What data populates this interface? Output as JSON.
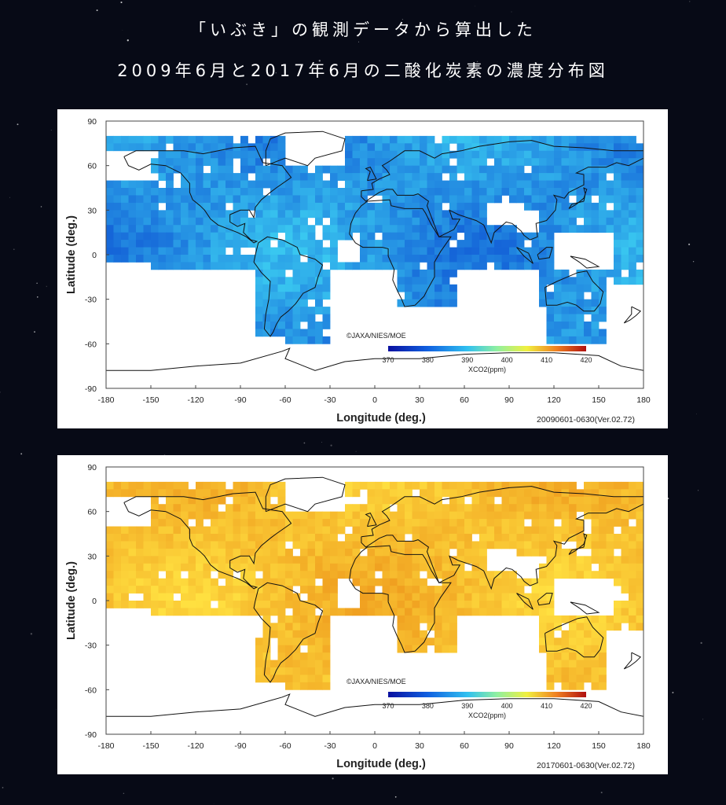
{
  "header": {
    "line1": "「いぶき」の観測データから算出した",
    "line2": "2009年6月と2017年6月の二酸化炭素の濃度分布図"
  },
  "chart_data": [
    {
      "type": "heatmap",
      "xlabel": "Longitude (deg.)",
      "ylabel": "Latitude (deg.)",
      "xlim": [
        -180,
        180
      ],
      "ylim": [
        -90,
        90
      ],
      "xticks": [
        "-180",
        "-150",
        "-120",
        "-90",
        "-60",
        "-30",
        "0",
        "30",
        "60",
        "90",
        "120",
        "150",
        "180"
      ],
      "yticks": [
        "90",
        "60",
        "30",
        "0",
        "-30",
        "-60",
        "-90"
      ],
      "credit": "©JAXA/NIES/MOE",
      "colorbar": {
        "label": "XCO2(ppm)",
        "ticks": [
          "370",
          "380",
          "390",
          "400",
          "410",
          "420"
        ],
        "min": 370,
        "max": 420
      },
      "period": "20090601-0630(Ver.02.72)",
      "approx_mean_ppm": 384,
      "color_low": "#1565d8",
      "color_high": "#39c7f0"
    },
    {
      "type": "heatmap",
      "xlabel": "Longitude (deg.)",
      "ylabel": "Latitude (deg.)",
      "xlim": [
        -180,
        180
      ],
      "ylim": [
        -90,
        90
      ],
      "xticks": [
        "-180",
        "-150",
        "-120",
        "-90",
        "-60",
        "-30",
        "0",
        "30",
        "60",
        "90",
        "120",
        "150",
        "180"
      ],
      "yticks": [
        "90",
        "60",
        "30",
        "0",
        "-30",
        "-60",
        "-90"
      ],
      "credit": "©JAXA/NIES/MOE",
      "colorbar": {
        "label": "XCO2(ppm)",
        "ticks": [
          "370",
          "380",
          "390",
          "400",
          "410",
          "420"
        ],
        "min": 370,
        "max": 420
      },
      "period": "20170601-0630(Ver.02.72)",
      "approx_mean_ppm": 405,
      "color_low": "#f0a020",
      "color_high": "#ffe040"
    }
  ]
}
